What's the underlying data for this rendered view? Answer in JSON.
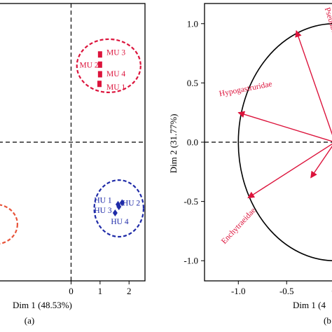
{
  "chart_data": [
    {
      "type": "scatter",
      "panel_label": "(a)",
      "xlabel": "Dim 1 (48.53%)",
      "ylabel": "",
      "xlim": [
        -2.5,
        2.55
      ],
      "ylim": [
        -2.45,
        2.45
      ],
      "x_ticks": [
        0,
        1,
        2
      ],
      "x_tick_labels": [
        "0",
        "1",
        "2"
      ],
      "grid": false,
      "colors": {
        "MU": "#dc143c",
        "HU": "#1f2ba8",
        "other": "#e8543a"
      },
      "series": [
        {
          "name": "MU",
          "marker": "square",
          "color": "#dc143c",
          "points": [
            {
              "label": "MU 3",
              "x": 1.0,
              "y": 1.55
            },
            {
              "label": "MU 2",
              "x": 1.0,
              "y": 1.37
            },
            {
              "label": "MU 4",
              "x": 1.0,
              "y": 1.2
            },
            {
              "label": "MU 1",
              "x": 0.98,
              "y": 1.03
            }
          ],
          "ellipse": {
            "cx": 1.3,
            "cy": 1.35,
            "rx": 1.1,
            "ry": 0.47
          }
        },
        {
          "name": "HU",
          "marker": "diamond",
          "color": "#1f2ba8",
          "points": [
            {
              "label": "HU 1",
              "x": 1.62,
              "y": -1.1
            },
            {
              "label": "HU 2",
              "x": 1.76,
              "y": -1.07
            },
            {
              "label": "HU 3",
              "x": 1.65,
              "y": -1.14
            },
            {
              "label": "HU 4",
              "x": 1.52,
              "y": -1.25
            }
          ],
          "ellipse": {
            "cx": 1.65,
            "cy": -1.17,
            "rx": 0.85,
            "ry": 0.5
          }
        },
        {
          "name": "",
          "ellipse": {
            "cx": -2.6,
            "cy": -1.45,
            "rx": 0.75,
            "ry": 0.35
          }
        }
      ],
      "point_labels": [
        {
          "text": "MU 3",
          "x": 1.55,
          "y": 1.59,
          "anchor": "middle"
        },
        {
          "text": "MU 2",
          "x": 0.62,
          "y": 1.37,
          "anchor": "middle"
        },
        {
          "text": "MU 4",
          "x": 1.55,
          "y": 1.21,
          "anchor": "middle"
        },
        {
          "text": "MU 1",
          "x": 1.55,
          "y": 0.98,
          "anchor": "middle"
        },
        {
          "text": "HU 1",
          "x": 1.1,
          "y": -1.02,
          "anchor": "middle"
        },
        {
          "text": "HU 2",
          "x": 2.08,
          "y": -1.07,
          "anchor": "middle"
        },
        {
          "text": "HU 3",
          "x": 1.1,
          "y": -1.2,
          "anchor": "middle"
        },
        {
          "text": "HU 4",
          "x": 1.68,
          "y": -1.4,
          "anchor": "middle"
        }
      ]
    },
    {
      "type": "biplot",
      "panel_label": "(b",
      "xlabel": "Dim 1 (4",
      "ylabel": "Dim 2 (31.77%)",
      "xlim": [
        -1.35,
        0.1
      ],
      "ylim": [
        -1.17,
        1.17
      ],
      "x_ticks": [
        -1.0,
        -0.5,
        0.0
      ],
      "x_tick_labels": [
        "-1.0",
        "-0.5",
        "0."
      ],
      "y_ticks": [
        1.0,
        0.5,
        0.0,
        -0.5,
        -1.0
      ],
      "y_tick_labels": [
        "1.0",
        "0.5",
        "0.0",
        "-0.5",
        "-1.0"
      ],
      "grid": false,
      "correlation_circle": {
        "r": 1.0
      },
      "arrow_color": "#dc143c",
      "vectors": [
        {
          "name": "Pseudachorutidae",
          "x": -0.4,
          "y": 0.94
        },
        {
          "name": "Hypogastruridae",
          "x": -1.0,
          "y": 0.25
        },
        {
          "name": "Enchytraeidae",
          "x": -0.9,
          "y": -0.47
        },
        {
          "name": "",
          "x": -0.25,
          "y": -0.3
        }
      ],
      "vector_labels": [
        {
          "text": "Pseudachorutidae",
          "x": -0.02,
          "y": 0.9,
          "rotate": 73
        },
        {
          "text": "Hypogastruridae",
          "x": -0.92,
          "y": 0.43,
          "rotate": -11
        },
        {
          "text": "Enchytraeidae",
          "x": -0.98,
          "y": -0.72,
          "rotate": -47
        }
      ]
    }
  ]
}
